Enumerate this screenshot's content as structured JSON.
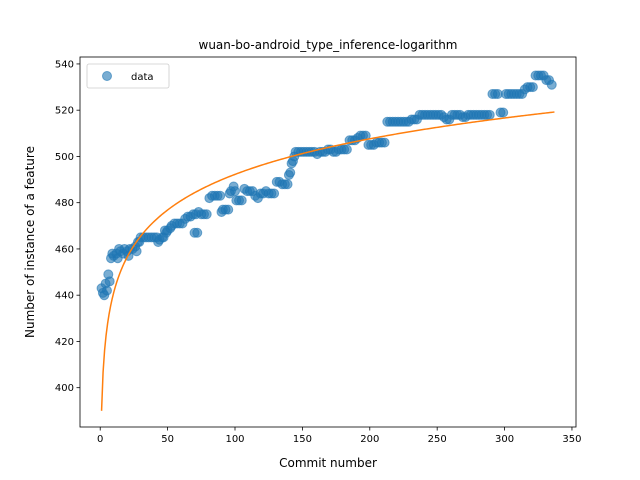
{
  "chart_data": {
    "type": "scatter",
    "title": "wuan-bo-android_type_inference-logarithm",
    "xlabel": "Commit number",
    "ylabel": "Number of instance of a feature",
    "xlim": [
      -15,
      353
    ],
    "ylim": [
      383,
      543
    ],
    "xticks": [
      0,
      50,
      100,
      150,
      200,
      250,
      300,
      350
    ],
    "yticks": [
      400,
      420,
      440,
      460,
      480,
      500,
      520,
      540
    ],
    "grid": false,
    "legend_position": "top-left",
    "series": [
      {
        "name": "data",
        "kind": "scatter",
        "color": "#1f77b4",
        "points": [
          [
            1,
            443
          ],
          [
            2,
            441
          ],
          [
            3,
            440
          ],
          [
            4,
            445
          ],
          [
            5,
            442
          ],
          [
            6,
            449
          ],
          [
            7,
            446
          ],
          [
            8,
            456
          ],
          [
            9,
            458
          ],
          [
            10,
            457
          ],
          [
            12,
            458
          ],
          [
            13,
            456
          ],
          [
            14,
            460
          ],
          [
            15,
            459
          ],
          [
            17,
            458
          ],
          [
            18,
            460
          ],
          [
            20,
            459
          ],
          [
            21,
            457
          ],
          [
            22,
            460
          ],
          [
            24,
            460
          ],
          [
            26,
            461
          ],
          [
            27,
            459
          ],
          [
            28,
            463
          ],
          [
            29,
            463
          ],
          [
            30,
            465
          ],
          [
            32,
            465
          ],
          [
            34,
            465
          ],
          [
            36,
            465
          ],
          [
            38,
            465
          ],
          [
            40,
            465
          ],
          [
            42,
            465
          ],
          [
            43,
            463
          ],
          [
            44,
            464
          ],
          [
            46,
            465
          ],
          [
            47,
            465
          ],
          [
            48,
            468
          ],
          [
            49,
            467
          ],
          [
            50,
            468
          ],
          [
            52,
            469
          ],
          [
            53,
            470
          ],
          [
            55,
            471
          ],
          [
            57,
            471
          ],
          [
            59,
            471
          ],
          [
            61,
            471
          ],
          [
            63,
            473
          ],
          [
            65,
            474
          ],
          [
            67,
            474
          ],
          [
            69,
            475
          ],
          [
            70,
            467
          ],
          [
            72,
            467
          ],
          [
            71,
            475
          ],
          [
            73,
            476
          ],
          [
            75,
            475
          ],
          [
            77,
            475
          ],
          [
            79,
            475
          ],
          [
            81,
            482
          ],
          [
            83,
            483
          ],
          [
            85,
            483
          ],
          [
            87,
            483
          ],
          [
            89,
            483
          ],
          [
            90,
            476
          ],
          [
            91,
            477
          ],
          [
            93,
            477
          ],
          [
            95,
            477
          ],
          [
            96,
            484
          ],
          [
            97,
            485
          ],
          [
            99,
            487
          ],
          [
            100,
            485
          ],
          [
            101,
            481
          ],
          [
            103,
            481
          ],
          [
            105,
            481
          ],
          [
            107,
            486
          ],
          [
            109,
            485
          ],
          [
            111,
            485
          ],
          [
            113,
            485
          ],
          [
            115,
            483
          ],
          [
            117,
            482
          ],
          [
            119,
            484
          ],
          [
            121,
            484
          ],
          [
            123,
            485
          ],
          [
            125,
            484
          ],
          [
            127,
            484
          ],
          [
            129,
            484
          ],
          [
            131,
            489
          ],
          [
            133,
            489
          ],
          [
            135,
            488
          ],
          [
            137,
            488
          ],
          [
            139,
            488
          ],
          [
            140,
            492
          ],
          [
            141,
            493
          ],
          [
            142,
            497
          ],
          [
            143,
            498
          ],
          [
            144,
            500
          ],
          [
            145,
            502
          ],
          [
            147,
            502
          ],
          [
            149,
            502
          ],
          [
            151,
            502
          ],
          [
            153,
            502
          ],
          [
            155,
            502
          ],
          [
            157,
            502
          ],
          [
            159,
            502
          ],
          [
            161,
            501
          ],
          [
            163,
            502
          ],
          [
            165,
            502
          ],
          [
            167,
            502
          ],
          [
            169,
            503
          ],
          [
            171,
            503
          ],
          [
            173,
            502
          ],
          [
            175,
            502
          ],
          [
            177,
            503
          ],
          [
            179,
            503
          ],
          [
            181,
            503
          ],
          [
            183,
            503
          ],
          [
            185,
            507
          ],
          [
            187,
            507
          ],
          [
            189,
            507
          ],
          [
            191,
            508
          ],
          [
            193,
            509
          ],
          [
            195,
            509
          ],
          [
            197,
            509
          ],
          [
            199,
            505
          ],
          [
            201,
            505
          ],
          [
            203,
            505
          ],
          [
            205,
            506
          ],
          [
            207,
            506
          ],
          [
            209,
            506
          ],
          [
            211,
            506
          ],
          [
            213,
            515
          ],
          [
            215,
            515
          ],
          [
            217,
            515
          ],
          [
            219,
            515
          ],
          [
            221,
            515
          ],
          [
            223,
            515
          ],
          [
            225,
            515
          ],
          [
            227,
            515
          ],
          [
            229,
            515
          ],
          [
            231,
            516
          ],
          [
            233,
            516
          ],
          [
            235,
            516
          ],
          [
            237,
            518
          ],
          [
            239,
            518
          ],
          [
            241,
            518
          ],
          [
            243,
            518
          ],
          [
            245,
            518
          ],
          [
            247,
            518
          ],
          [
            249,
            518
          ],
          [
            251,
            518
          ],
          [
            253,
            518
          ],
          [
            255,
            517
          ],
          [
            257,
            516
          ],
          [
            259,
            516
          ],
          [
            261,
            518
          ],
          [
            263,
            518
          ],
          [
            265,
            518
          ],
          [
            267,
            518
          ],
          [
            269,
            517
          ],
          [
            271,
            517
          ],
          [
            273,
            518
          ],
          [
            275,
            518
          ],
          [
            277,
            518
          ],
          [
            279,
            518
          ],
          [
            281,
            518
          ],
          [
            283,
            518
          ],
          [
            285,
            518
          ],
          [
            287,
            518
          ],
          [
            289,
            518
          ],
          [
            291,
            527
          ],
          [
            293,
            527
          ],
          [
            295,
            527
          ],
          [
            297,
            519
          ],
          [
            299,
            519
          ],
          [
            301,
            527
          ],
          [
            303,
            527
          ],
          [
            305,
            527
          ],
          [
            307,
            527
          ],
          [
            309,
            527
          ],
          [
            311,
            527
          ],
          [
            313,
            527
          ],
          [
            315,
            529
          ],
          [
            317,
            530
          ],
          [
            319,
            530
          ],
          [
            321,
            530
          ],
          [
            323,
            535
          ],
          [
            325,
            535
          ],
          [
            327,
            535
          ],
          [
            329,
            535
          ],
          [
            331,
            533
          ],
          [
            333,
            533
          ],
          [
            335,
            531
          ]
        ]
      },
      {
        "name": "",
        "kind": "line",
        "color": "#ff7f0e",
        "model": "y = 390 + 22.2*ln(x)",
        "x_range": [
          1,
          337
        ]
      }
    ]
  }
}
